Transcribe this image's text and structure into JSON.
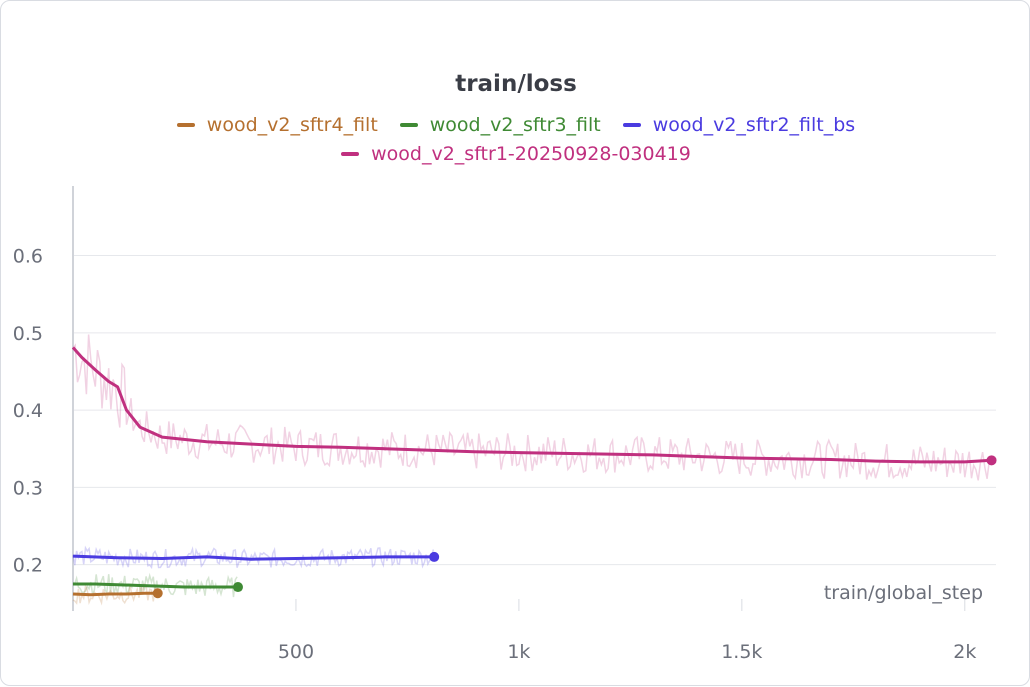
{
  "chart_data": {
    "type": "line",
    "title": "train/loss",
    "xlabel": "train/global_step",
    "ylabel": "",
    "xlim": [
      0,
      2070
    ],
    "ylim": [
      0.14,
      0.69
    ],
    "x_ticks": [
      500,
      1000,
      1500,
      2000
    ],
    "x_tick_labels": [
      "500",
      "1k",
      "1.5k",
      "2k"
    ],
    "y_ticks": [
      0.2,
      0.3,
      0.4,
      0.5,
      0.6
    ],
    "y_tick_labels": [
      "0.2",
      "0.3",
      "0.4",
      "0.5",
      "0.6"
    ],
    "grid": true,
    "legend_placement": "top-center",
    "series": [
      {
        "name": "wood_v2_sftr4_filt",
        "color": "#b5702f",
        "x": [
          0,
          40,
          80,
          120,
          160,
          190
        ],
        "values": [
          0.162,
          0.161,
          0.162,
          0.162,
          0.163,
          0.163
        ]
      },
      {
        "name": "wood_v2_sftr3_filt",
        "color": "#3f8a34",
        "x": [
          0,
          50,
          100,
          150,
          200,
          250,
          300,
          370
        ],
        "values": [
          0.175,
          0.175,
          0.174,
          0.173,
          0.172,
          0.171,
          0.171,
          0.171
        ]
      },
      {
        "name": "wood_v2_sftr2_filt_bs",
        "color": "#4a3be0",
        "x": [
          0,
          100,
          200,
          300,
          400,
          500,
          600,
          700,
          810
        ],
        "values": [
          0.211,
          0.209,
          0.208,
          0.21,
          0.207,
          0.208,
          0.209,
          0.21,
          0.21
        ]
      },
      {
        "name": "wood_v2_sftr1-20250928-030419",
        "color": "#c0307f",
        "x": [
          0,
          20,
          50,
          80,
          100,
          120,
          150,
          200,
          300,
          400,
          500,
          600,
          700,
          800,
          900,
          1000,
          1100,
          1200,
          1300,
          1400,
          1500,
          1600,
          1700,
          1800,
          1900,
          2000,
          2060
        ],
        "values": [
          0.481,
          0.468,
          0.452,
          0.437,
          0.43,
          0.4,
          0.378,
          0.365,
          0.359,
          0.356,
          0.353,
          0.352,
          0.35,
          0.348,
          0.346,
          0.345,
          0.344,
          0.343,
          0.342,
          0.34,
          0.338,
          0.337,
          0.336,
          0.334,
          0.333,
          0.333,
          0.335
        ]
      }
    ]
  }
}
